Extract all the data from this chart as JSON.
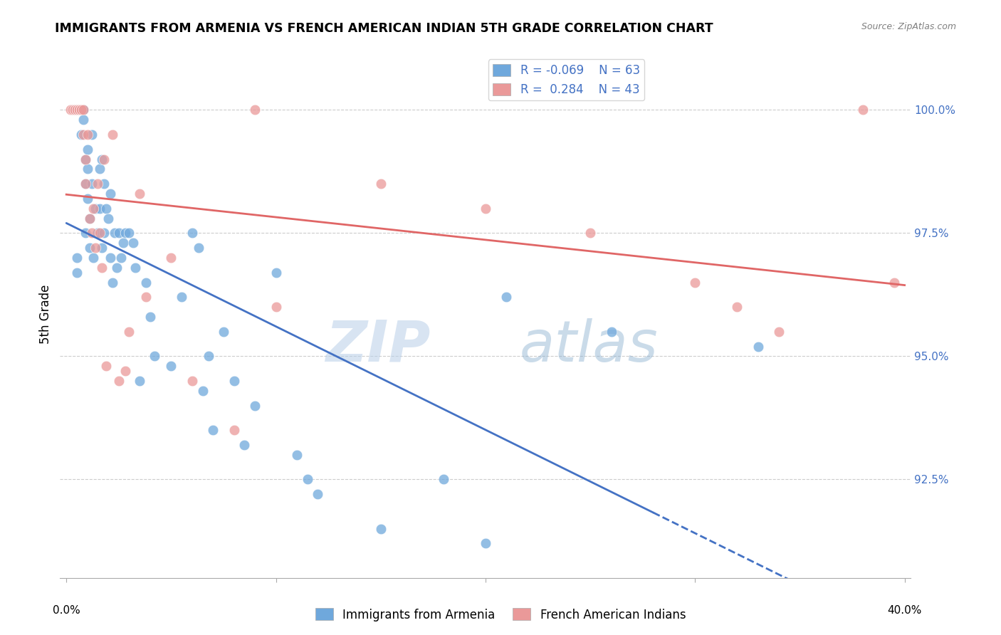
{
  "title": "IMMIGRANTS FROM ARMENIA VS FRENCH AMERICAN INDIAN 5TH GRADE CORRELATION CHART",
  "source": "Source: ZipAtlas.com",
  "ylabel": "5th Grade",
  "xlim": [
    0.0,
    0.4
  ],
  "ylim": [
    90.5,
    101.2
  ],
  "legend_r_blue": "-0.069",
  "legend_n_blue": "63",
  "legend_r_pink": "0.284",
  "legend_n_pink": "43",
  "blue_color": "#6fa8dc",
  "pink_color": "#ea9999",
  "blue_line_color": "#4472c4",
  "pink_line_color": "#e06666",
  "watermark_zip": "ZIP",
  "watermark_atlas": "atlas",
  "blue_x": [
    0.005,
    0.005,
    0.007,
    0.008,
    0.008,
    0.009,
    0.009,
    0.009,
    0.01,
    0.01,
    0.01,
    0.011,
    0.011,
    0.012,
    0.012,
    0.013,
    0.014,
    0.015,
    0.016,
    0.016,
    0.017,
    0.017,
    0.018,
    0.018,
    0.019,
    0.02,
    0.021,
    0.021,
    0.022,
    0.023,
    0.024,
    0.025,
    0.026,
    0.027,
    0.028,
    0.03,
    0.032,
    0.033,
    0.035,
    0.038,
    0.04,
    0.042,
    0.05,
    0.055,
    0.06,
    0.063,
    0.065,
    0.068,
    0.07,
    0.075,
    0.08,
    0.085,
    0.09,
    0.1,
    0.11,
    0.115,
    0.12,
    0.15,
    0.18,
    0.2,
    0.21,
    0.26,
    0.33
  ],
  "blue_y": [
    96.7,
    97.0,
    99.5,
    100.0,
    99.8,
    99.0,
    98.5,
    97.5,
    99.2,
    98.8,
    98.2,
    97.8,
    97.2,
    99.5,
    98.5,
    97.0,
    98.0,
    97.5,
    98.8,
    98.0,
    99.0,
    97.2,
    98.5,
    97.5,
    98.0,
    97.8,
    98.3,
    97.0,
    96.5,
    97.5,
    96.8,
    97.5,
    97.0,
    97.3,
    97.5,
    97.5,
    97.3,
    96.8,
    94.5,
    96.5,
    95.8,
    95.0,
    94.8,
    96.2,
    97.5,
    97.2,
    94.3,
    95.0,
    93.5,
    95.5,
    94.5,
    93.2,
    94.0,
    96.7,
    93.0,
    92.5,
    92.2,
    91.5,
    92.5,
    91.2,
    96.2,
    95.5,
    95.2
  ],
  "pink_x": [
    0.002,
    0.003,
    0.004,
    0.004,
    0.005,
    0.005,
    0.006,
    0.006,
    0.007,
    0.007,
    0.008,
    0.008,
    0.009,
    0.009,
    0.01,
    0.011,
    0.012,
    0.013,
    0.014,
    0.015,
    0.016,
    0.017,
    0.018,
    0.019,
    0.022,
    0.025,
    0.028,
    0.03,
    0.035,
    0.038,
    0.05,
    0.06,
    0.08,
    0.09,
    0.1,
    0.15,
    0.2,
    0.25,
    0.3,
    0.32,
    0.34,
    0.38,
    0.395
  ],
  "pink_y": [
    100.0,
    100.0,
    100.0,
    100.0,
    100.0,
    100.0,
    100.0,
    100.0,
    100.0,
    100.0,
    100.0,
    99.5,
    99.0,
    98.5,
    99.5,
    97.8,
    97.5,
    98.0,
    97.2,
    98.5,
    97.5,
    96.8,
    99.0,
    94.8,
    99.5,
    94.5,
    94.7,
    95.5,
    98.3,
    96.2,
    97.0,
    94.5,
    93.5,
    100.0,
    96.0,
    98.5,
    98.0,
    97.5,
    96.5,
    96.0,
    95.5,
    100.0,
    96.5
  ]
}
